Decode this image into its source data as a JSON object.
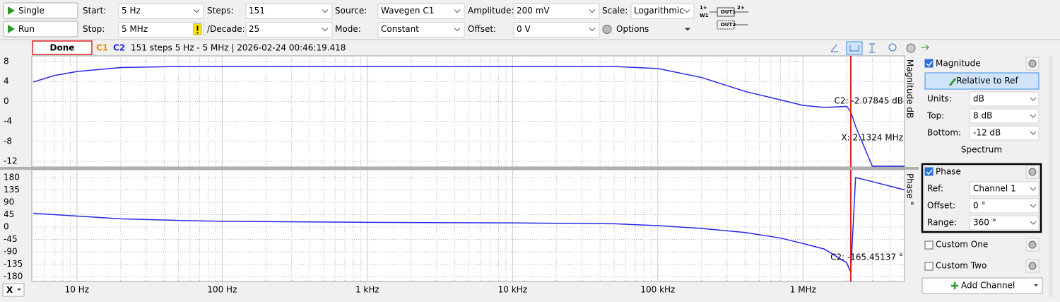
{
  "toolbar": {
    "buttons": [
      "Single",
      "Run"
    ],
    "fields": [
      {
        "label": "Start:",
        "value": "5 Hz"
      },
      {
        "label": "Stop:",
        "value": "5 MHz"
      },
      {
        "label": "Steps:",
        "value": "151"
      },
      {
        "label": "/Decade:",
        "value": "25"
      },
      {
        "label": "Source:",
        "value": "Wavegen C1"
      },
      {
        "label": "Mode:",
        "value": "Constant"
      },
      {
        "label": "Amplitude:",
        "value": "200 mV"
      },
      {
        "label": "Offset:",
        "value": "0 V"
      },
      {
        "label": "Scale:",
        "value": "Logarithmic"
      }
    ],
    "options": "Options",
    "diagram": [
      "1+",
      "W1",
      "DUT1",
      "2+",
      "DUT2"
    ]
  },
  "status": {
    "state": "Done",
    "channels": [
      "C1",
      "C2"
    ],
    "info": "151 steps  5 Hz - 5 MHz | 2026-02-24 00:46:19.418"
  },
  "plot": {
    "xlim": [
      5,
      5000000
    ],
    "xticks": [
      {
        "value": 10,
        "label": "10 Hz"
      },
      {
        "value": 100,
        "label": "100 Hz"
      },
      {
        "value": 1000,
        "label": "1 kHz"
      },
      {
        "value": 10000,
        "label": "10 kHz"
      },
      {
        "value": 100000,
        "label": "100 kHz"
      },
      {
        "value": 1000000,
        "label": "1 MHz"
      }
    ],
    "x_menu": "X",
    "x": [
      5,
      7,
      10,
      20,
      50,
      100,
      1000,
      10000,
      50000,
      100000,
      200000,
      400000,
      700000,
      1000000,
      1400000,
      2000000,
      2132400,
      2300000,
      3000000,
      5000000
    ],
    "magnitude": {
      "axis_label": "Magnitude  dB",
      "color": "#2828e6",
      "ylim": [
        -12,
        8
      ],
      "yticks": [
        8,
        4,
        0,
        -4,
        -8,
        -12
      ],
      "values": [
        3.9,
        5.2,
        6.0,
        6.8,
        7.0,
        7.0,
        7.0,
        7.0,
        7.0,
        6.6,
        4.8,
        2.0,
        0.3,
        -0.8,
        -1.2,
        -1.0,
        -2.08,
        -5,
        -13,
        -13
      ],
      "cursor_label": "C2: -2.07845 dB"
    },
    "phase": {
      "axis_label": "Phase °",
      "color": "#2828e6",
      "ylim": [
        -180,
        180
      ],
      "yticks": [
        180,
        135,
        90,
        45,
        0,
        -45,
        -90,
        -135,
        -180
      ],
      "values": [
        50,
        45,
        40,
        30,
        24,
        21,
        17,
        15,
        12,
        5,
        -5,
        -20,
        -40,
        -60,
        -80,
        -130,
        -165,
        180,
        165,
        135
      ],
      "cursor_label": "C2: -165.45137 °"
    },
    "cursor": {
      "x": 2132400,
      "label": "X: 2.1324 MHz",
      "color": "#e02020"
    }
  },
  "side_panel": {
    "magnitude": {
      "title": "Magnitude",
      "button": "Relative to Ref",
      "rows": [
        {
          "label": "Units:",
          "value": "dB"
        },
        {
          "label": "Top:",
          "value": "8 dB"
        },
        {
          "label": "Bottom:",
          "value": "-12 dB"
        }
      ],
      "spectrum": "Spectrum"
    },
    "phase": {
      "title": "Phase",
      "rows": [
        {
          "label": "Ref:",
          "value": "Channel 1"
        },
        {
          "label": "Offset:",
          "value": "0 °"
        },
        {
          "label": "Range:",
          "value": "360 °"
        }
      ]
    },
    "custom": [
      "Custom One",
      "Custom Two"
    ],
    "add_channel": "Add Channel"
  }
}
